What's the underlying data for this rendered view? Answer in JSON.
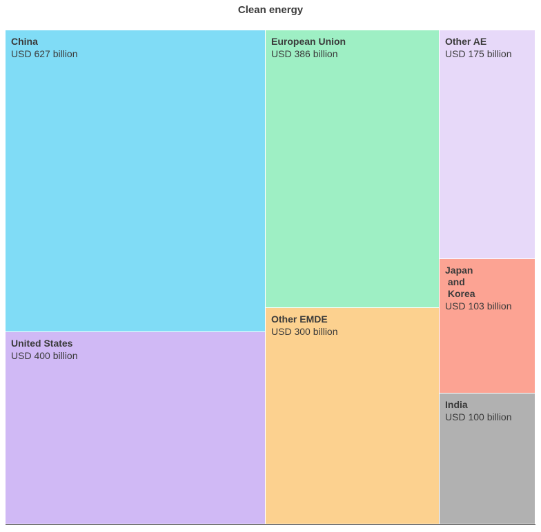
{
  "chart_data": {
    "type": "treemap",
    "title": "Clean energy",
    "unit_prefix": "USD",
    "unit_suffix": "billion",
    "items": [
      {
        "name": "China",
        "value": 627,
        "label": "USD 627 billion",
        "color": "#80DCF6"
      },
      {
        "name": "United States",
        "value": 400,
        "label": "USD 400 billion",
        "color": "#D0B9F5"
      },
      {
        "name": "European Union",
        "value": 386,
        "label": "USD 386 billion",
        "color": "#9EEFC4"
      },
      {
        "name": "Other EMDE",
        "value": 300,
        "label": "USD 300 billion",
        "color": "#FCD18F"
      },
      {
        "name": "Other AE",
        "value": 175,
        "label": "USD 175 billion",
        "color": "#E7D9F9"
      },
      {
        "name": "Japan\n and\n Korea",
        "value": 103,
        "label": "USD 103 billion",
        "color": "#FCA393"
      },
      {
        "name": "India",
        "value": 100,
        "label": "USD 100 billion",
        "color": "#B1B1B1"
      }
    ]
  }
}
